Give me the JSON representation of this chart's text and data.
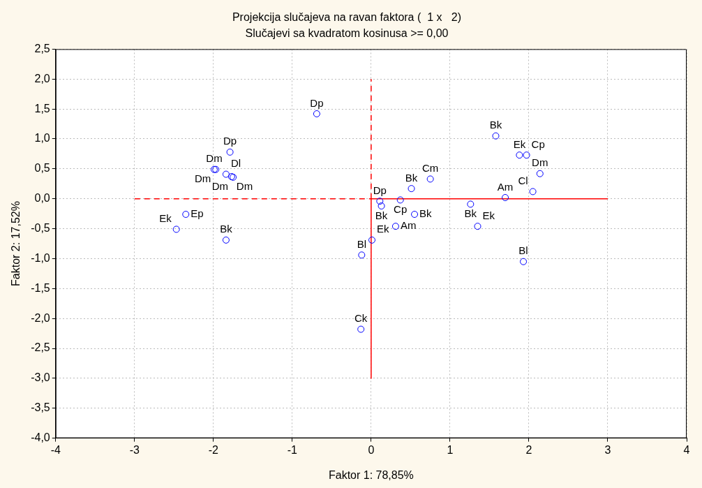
{
  "chart_data": {
    "type": "scatter",
    "title": "Projekcija slučajeva na ravan faktora (  1 x   2)",
    "subtitle": "Slučajevi sa kvadratom kosinusa >= 0,00",
    "xlabel": "Faktor 1: 78,85%",
    "ylabel": "Faktor 2: 17,52%",
    "xlim": [
      -4,
      4
    ],
    "xticks": [
      -4,
      -3,
      -2,
      -1,
      0,
      1,
      2,
      3,
      4
    ],
    "ylim": [
      -4,
      2.5
    ],
    "yticks": [
      {
        "value": -4,
        "label": "-4,0"
      },
      {
        "value": -3.5,
        "label": "-3,5"
      },
      {
        "value": -3,
        "label": "-3,0"
      },
      {
        "value": -2.5,
        "label": "-2,5"
      },
      {
        "value": -2,
        "label": "-2,0"
      },
      {
        "value": -1.5,
        "label": "-1,5"
      },
      {
        "value": -1,
        "label": "-1,0"
      },
      {
        "value": -0.5,
        "label": "-0,5"
      },
      {
        "value": 0,
        "label": "0,0"
      },
      {
        "value": 0.5,
        "label": "0,5"
      },
      {
        "value": 1,
        "label": "1,0"
      },
      {
        "value": 1.5,
        "label": "1,5"
      },
      {
        "value": 2,
        "label": "2,0"
      },
      {
        "value": 2.5,
        "label": "2,5"
      }
    ],
    "grid": true,
    "legend": false,
    "marker": "circle",
    "series": [
      {
        "color": "#0000ff",
        "x": [
          -0.69,
          -1.79,
          -1.99,
          -1.97,
          -1.84,
          -1.77,
          -1.75,
          -2.35,
          -2.47,
          -1.84,
          0.11,
          0.13,
          0.37,
          0.51,
          0.75,
          0.55,
          0.31,
          0.01,
          -0.12,
          -0.13,
          1.58,
          1.88,
          1.97,
          2.14,
          2.05,
          1.7,
          1.26,
          1.35,
          1.93
        ],
        "values": [
          1.42,
          0.78,
          0.49,
          0.49,
          0.41,
          0.37,
          0.36,
          -0.26,
          -0.51,
          -0.69,
          -0.04,
          -0.12,
          -0.02,
          0.17,
          0.33,
          -0.26,
          -0.46,
          -0.69,
          -0.94,
          -2.18,
          1.05,
          0.73,
          0.73,
          0.42,
          0.12,
          0.02,
          -0.09,
          -0.46,
          -1.05
        ],
        "value_labels": [
          "Dp",
          "Dp",
          "Dm",
          "Dm",
          "Dl",
          "Dm",
          "Dm",
          "Ep",
          "Ek",
          "Bk",
          "Dp",
          "Bk",
          "Cp",
          "Bk",
          "Cm",
          "Bk",
          "Am",
          "Ek",
          "Bl",
          "Ck",
          "Bk",
          "Ek",
          "Cp",
          "Dm",
          "Cl",
          "Am",
          "Bk",
          "Ek",
          "Bl"
        ]
      },
      {
        "type": "line",
        "color": "#ff0000",
        "line_style": "dashed",
        "marker": "none",
        "x": [
          -3,
          0
        ],
        "values": [
          0,
          0
        ]
      },
      {
        "type": "line",
        "color": "#ff0000",
        "line_style": "solid",
        "marker": "none",
        "x": [
          0,
          3
        ],
        "values": [
          0,
          0
        ]
      },
      {
        "type": "line",
        "color": "#ff0000",
        "line_style": "dashed",
        "marker": "none",
        "x": [
          0,
          0
        ],
        "values": [
          0,
          2
        ]
      },
      {
        "type": "line",
        "color": "#ff0000",
        "line_style": "solid",
        "marker": "none",
        "x": [
          0,
          0
        ],
        "values": [
          0,
          -3
        ]
      }
    ]
  }
}
